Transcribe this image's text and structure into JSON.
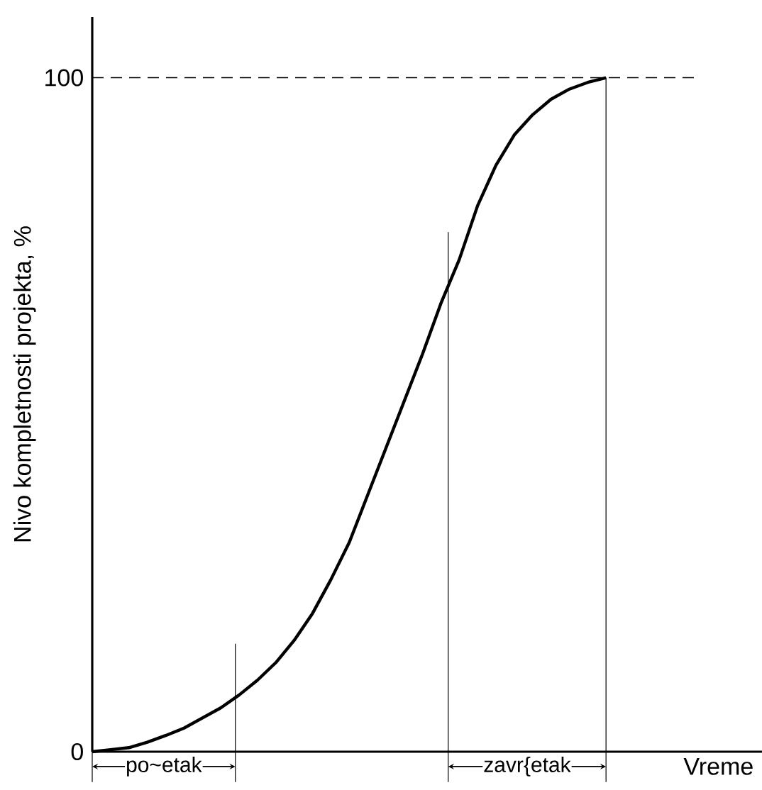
{
  "chart_data": {
    "type": "line",
    "xlabel": "Vreme",
    "ylabel": "Nivo kompletnosti projekta, %",
    "categories": [
      null,
      null,
      null,
      null,
      null,
      null,
      null,
      null,
      null,
      null,
      null,
      null,
      null,
      null,
      null,
      null,
      null,
      null,
      null,
      null,
      null,
      null,
      null,
      null,
      null,
      null,
      null,
      null,
      null,
      null,
      null,
      null,
      null,
      null
    ],
    "series": [
      {
        "color": "#000000",
        "values": [
          0,
          0.3,
          0.6,
          1.4,
          2.4,
          3.5,
          5.0,
          6.5,
          8.4,
          10.6,
          13.2,
          16.5,
          20.5,
          25.5,
          31,
          38,
          45,
          52,
          59,
          66.5,
          73,
          81,
          87,
          91.5,
          94.5,
          96.8,
          98.3,
          99.3,
          100,
          null,
          null,
          null,
          null,
          null
        ]
      }
    ],
    "ylim": [
      0,
      109
    ],
    "yticks": [
      0,
      100
    ],
    "tick_labels": "y",
    "marker": "none",
    "line_style": "solid",
    "grid": false,
    "ref_lines": [
      {
        "axis": "y",
        "value": 100,
        "line_style": "dashed",
        "color": "#000000"
      }
    ],
    "annotations": [
      "po~etak",
      "zavr{etak"
    ]
  }
}
